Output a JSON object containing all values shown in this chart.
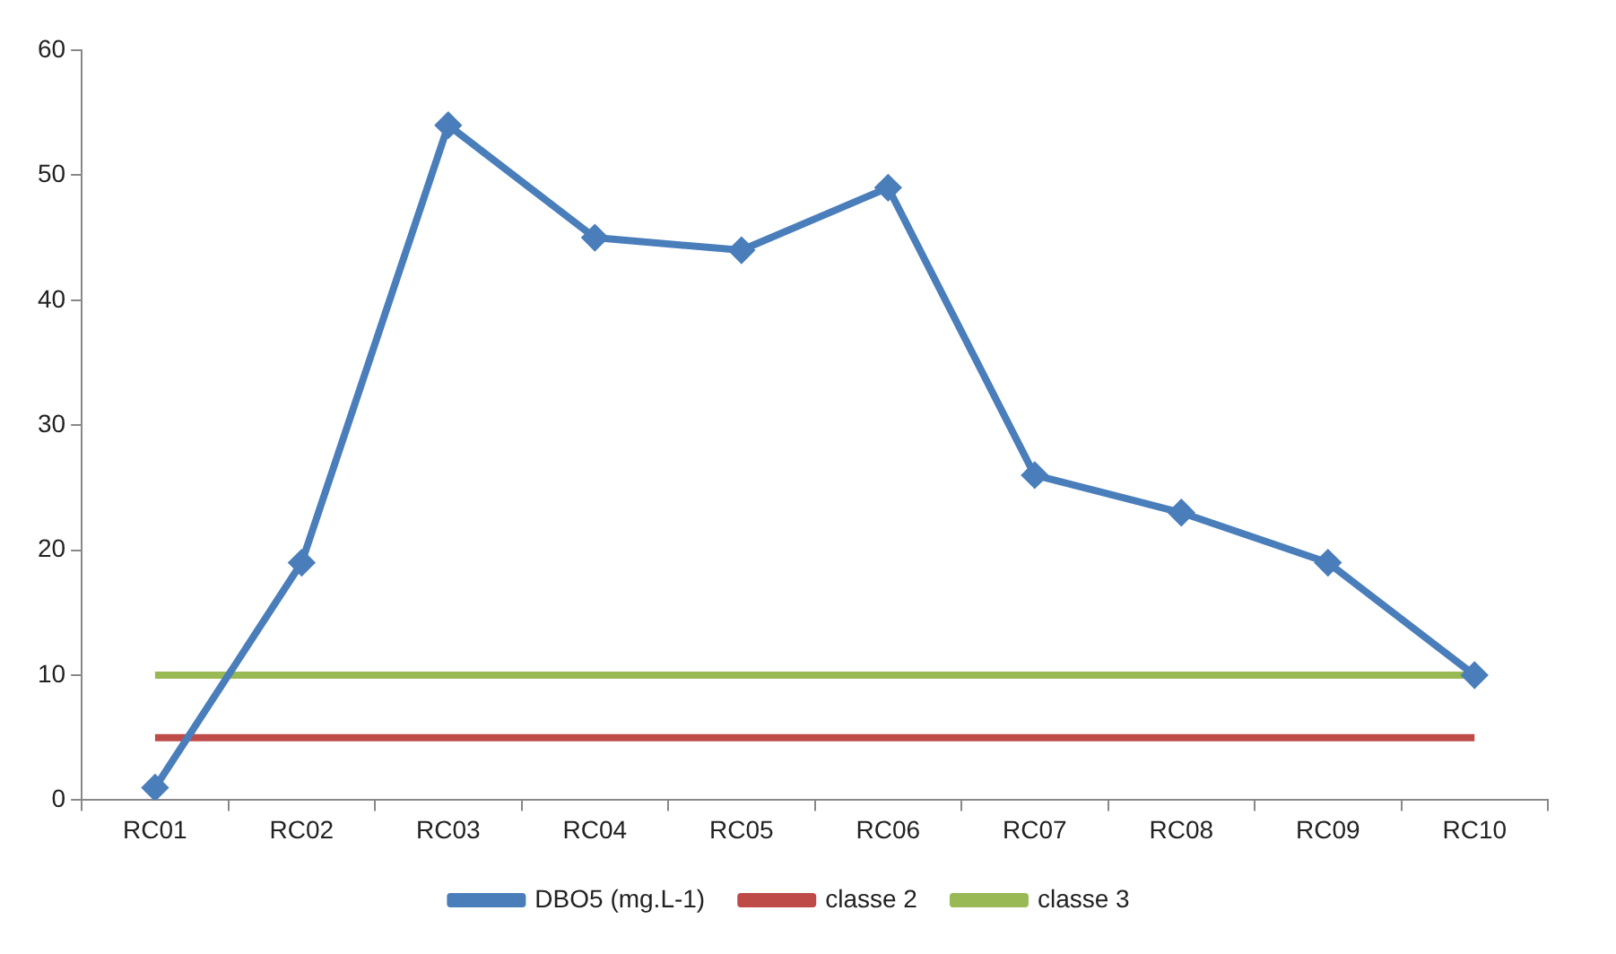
{
  "chart_data": {
    "type": "line",
    "categories": [
      "RC01",
      "RC02",
      "RC03",
      "RC04",
      "RC05",
      "RC06",
      "RC07",
      "RC08",
      "RC09",
      "RC10"
    ],
    "series": [
      {
        "name": "DBO5 (mg.L-1)",
        "color": "#4a7ebb",
        "marker": "diamond",
        "values": [
          1,
          19,
          54,
          45,
          44,
          49,
          26,
          23,
          19,
          10
        ]
      },
      {
        "name": "classe 2",
        "color": "#be4b48",
        "marker": "none",
        "values": [
          5,
          5,
          5,
          5,
          5,
          5,
          5,
          5,
          5,
          5
        ]
      },
      {
        "name": "classe 3",
        "color": "#98b954",
        "marker": "none",
        "values": [
          10,
          10,
          10,
          10,
          10,
          10,
          10,
          10,
          10,
          10
        ]
      }
    ],
    "ylim": [
      0,
      60
    ],
    "yticks": [
      0,
      10,
      20,
      30,
      40,
      50,
      60
    ],
    "grid": false,
    "legend": "bottom"
  }
}
